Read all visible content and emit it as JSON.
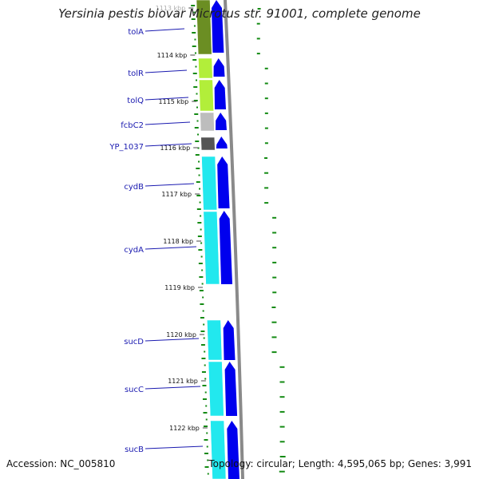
{
  "title": "Yersinia pestis biovar Microtus str. 91001, complete genome",
  "footer": {
    "accession": "Accession: NC_005810",
    "topology": "Topology: circular; Length: 4,595,065 bp; Genes: 3,991"
  },
  "colors": {
    "cds_forward": "#0000ee",
    "backbone": "#8a8a8a",
    "gc_skew": "#138a13",
    "label": "#1a1ab0",
    "tolA": "#6b8e23",
    "tolR_tolQ": "#b2ee3a",
    "fcbC2": "#bdbdbd",
    "YP_1037": "#555555",
    "cyd_suc": "#22e8ee"
  },
  "ticks": [
    "1113 kbp",
    "1114 kbp",
    "1115 kbp",
    "1116 kbp",
    "1117 kbp",
    "1118 kbp",
    "1119 kbp",
    "1120 kbp",
    "1121 kbp",
    "1122 kbp"
  ],
  "genes": [
    {
      "id": "tolA",
      "label": "tolA"
    },
    {
      "id": "tolR",
      "label": "tolR"
    },
    {
      "id": "tolQ",
      "label": "tolQ"
    },
    {
      "id": "fcbC2",
      "label": "fcbC2"
    },
    {
      "id": "YP_1037",
      "label": "YP_1037"
    },
    {
      "id": "cydB",
      "label": "cydB"
    },
    {
      "id": "cydA",
      "label": "cydA"
    },
    {
      "id": "sucD",
      "label": "sucD"
    },
    {
      "id": "sucC",
      "label": "sucC"
    },
    {
      "id": "sucB",
      "label": "sucB"
    }
  ]
}
